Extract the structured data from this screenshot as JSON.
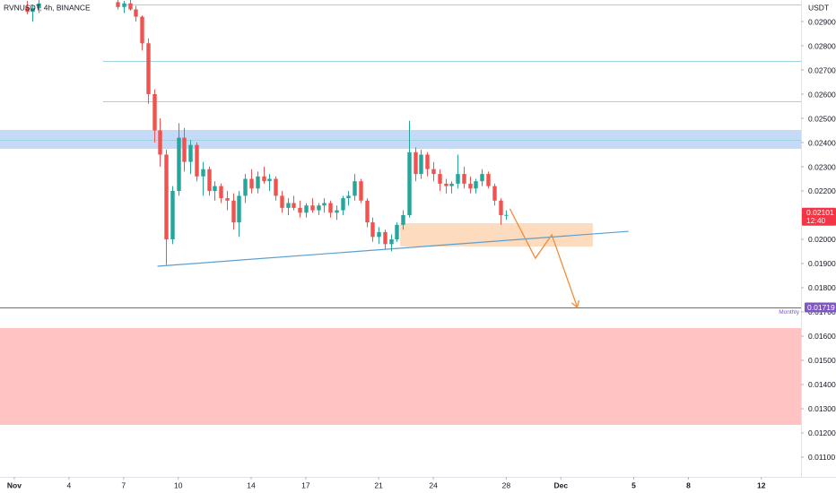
{
  "chart_data": {
    "type": "candlestick",
    "title": "RVNUSDT, 4h, BINANCE",
    "y_unit": "USDT",
    "up_color": "#26a69a",
    "down_color": "#ef5350",
    "grid": false,
    "xlim": [
      0.216,
      44.18
    ],
    "ylim": [
      0.010185,
      0.029889
    ],
    "xticks": [
      {
        "value": 1,
        "label": "Nov"
      },
      4,
      7,
      10,
      14,
      17,
      21,
      24,
      28,
      {
        "value": 31,
        "label": "Dec"
      },
      {
        "value": 35,
        "label": "5"
      },
      {
        "value": 38,
        "label": "8"
      },
      {
        "value": 42,
        "label": "12"
      }
    ],
    "yticks": [
      {
        "value": 0.011,
        "label": "0.01100"
      },
      {
        "value": 0.012,
        "label": "0.01200"
      },
      {
        "value": 0.013,
        "label": "0.01300"
      },
      {
        "value": 0.014,
        "label": "0.01400"
      },
      {
        "value": 0.015,
        "label": "0.01500"
      },
      {
        "value": 0.016,
        "label": "0.01600"
      },
      {
        "value": 0.017,
        "label": "0.01700"
      },
      {
        "value": 0.018,
        "label": "0.01800"
      },
      {
        "value": 0.019,
        "label": "0.01900"
      },
      {
        "value": 0.02,
        "label": "0.02000"
      },
      {
        "value": 0.021,
        "label": "0.02100"
      },
      {
        "value": 0.022,
        "label": "0.02200"
      },
      {
        "value": 0.023,
        "label": "0.02300"
      },
      {
        "value": 0.024,
        "label": "0.02400"
      },
      {
        "value": 0.025,
        "label": "0.02500"
      },
      {
        "value": 0.026,
        "label": "0.02600"
      },
      {
        "value": 0.027,
        "label": "0.02700"
      },
      {
        "value": 0.028,
        "label": "0.02800"
      },
      {
        "value": 0.029,
        "label": "0.02900"
      }
    ],
    "x": [
      1.67,
      2,
      2.33,
      6.67,
      7,
      7.33,
      7.67,
      8,
      8.33,
      8.67,
      9,
      9.33,
      9.67,
      10,
      10.33,
      10.67,
      11,
      11.33,
      11.67,
      12,
      12.33,
      12.67,
      13,
      13.33,
      13.67,
      14,
      14.33,
      14.67,
      15,
      15.33,
      15.67,
      16,
      16.33,
      16.67,
      17,
      17.33,
      17.67,
      18,
      18.33,
      18.67,
      19,
      19.33,
      19.67,
      20,
      20.33,
      20.67,
      21,
      21.33,
      21.67,
      22,
      22.33,
      22.67,
      23,
      23.33,
      23.67,
      24,
      24.33,
      24.67,
      25,
      25.33,
      25.67,
      26,
      26.33,
      26.67,
      27,
      27.33,
      27.67,
      28
    ],
    "open": [
      0.0296,
      0.0294,
      0.02955,
      0.0298,
      0.0296,
      0.02975,
      0.0295,
      0.0292,
      0.0281,
      0.026,
      0.0245,
      0.0235,
      0.02,
      0.022,
      0.0242,
      0.0232,
      0.0239,
      0.0226,
      0.0229,
      0.022,
      0.0222,
      0.0217,
      0.0216,
      0.0207,
      0.0218,
      0.0225,
      0.0221,
      0.0226,
      0.0224,
      0.0225,
      0.0218,
      0.0213,
      0.0215,
      0.0213,
      0.0211,
      0.0214,
      0.0212,
      0.0214,
      0.0215,
      0.0211,
      0.0212,
      0.0217,
      0.0218,
      0.0224,
      0.0216,
      0.0207,
      0.0201,
      0.0203,
      0.0198,
      0.02,
      0.0206,
      0.021,
      0.0236,
      0.0227,
      0.0235,
      0.0229,
      0.0227,
      0.0223,
      0.0222,
      0.0223,
      0.0227,
      0.0223,
      0.0221,
      0.0224,
      0.0227,
      0.0222,
      0.0216,
      0.021
    ],
    "high": [
      0.02985,
      0.0297,
      0.0299,
      0.02995,
      0.02985,
      0.02995,
      0.02965,
      0.02925,
      0.0283,
      0.0262,
      0.025,
      0.0237,
      0.0222,
      0.0248,
      0.0246,
      0.0241,
      0.024,
      0.0232,
      0.023,
      0.0224,
      0.0223,
      0.022,
      0.0219,
      0.022,
      0.0227,
      0.0229,
      0.0228,
      0.023,
      0.0227,
      0.0226,
      0.022,
      0.0217,
      0.0218,
      0.0216,
      0.0215,
      0.0217,
      0.0215,
      0.0217,
      0.0216,
      0.0214,
      0.0218,
      0.022,
      0.0227,
      0.0225,
      0.0217,
      0.0209,
      0.0205,
      0.0204,
      0.0202,
      0.0207,
      0.0212,
      0.0249,
      0.0238,
      0.0237,
      0.0236,
      0.0232,
      0.0229,
      0.0225,
      0.0224,
      0.0235,
      0.023,
      0.0226,
      0.0225,
      0.0229,
      0.0228,
      0.0223,
      0.0217,
      0.0212
    ],
    "low": [
      0.0293,
      0.029,
      0.02935,
      0.0295,
      0.02935,
      0.02945,
      0.029,
      0.0278,
      0.0256,
      0.024,
      0.023,
      0.01895,
      0.0198,
      0.0218,
      0.0228,
      0.0227,
      0.0224,
      0.0218,
      0.0218,
      0.0216,
      0.0215,
      0.0212,
      0.0204,
      0.0201,
      0.0215,
      0.0219,
      0.0219,
      0.0223,
      0.022,
      0.0216,
      0.0211,
      0.021,
      0.0212,
      0.0209,
      0.0209,
      0.0211,
      0.021,
      0.0211,
      0.0209,
      0.0208,
      0.021,
      0.0214,
      0.0216,
      0.0215,
      0.0205,
      0.0199,
      0.0198,
      0.0196,
      0.0195,
      0.0199,
      0.0204,
      0.0209,
      0.0224,
      0.0225,
      0.0226,
      0.0224,
      0.022,
      0.0219,
      0.0219,
      0.0221,
      0.0221,
      0.0219,
      0.0219,
      0.0222,
      0.0221,
      0.0214,
      0.0206,
      0.0208
    ],
    "close": [
      0.0294,
      0.02955,
      0.02975,
      0.0296,
      0.02975,
      0.0295,
      0.0292,
      0.0281,
      0.026,
      0.0245,
      0.0235,
      0.02,
      0.022,
      0.0242,
      0.0232,
      0.0239,
      0.0226,
      0.0229,
      0.022,
      0.0222,
      0.0217,
      0.0216,
      0.0207,
      0.0218,
      0.0225,
      0.0221,
      0.0226,
      0.0224,
      0.0225,
      0.0218,
      0.0213,
      0.0215,
      0.0213,
      0.0211,
      0.0214,
      0.0212,
      0.0214,
      0.0215,
      0.0211,
      0.0212,
      0.0217,
      0.0218,
      0.0224,
      0.0216,
      0.0207,
      0.0201,
      0.0203,
      0.0198,
      0.02,
      0.0206,
      0.021,
      0.0236,
      0.0227,
      0.0235,
      0.0229,
      0.0227,
      0.0223,
      0.0222,
      0.0223,
      0.0227,
      0.0223,
      0.0221,
      0.0224,
      0.0227,
      0.0222,
      0.0216,
      0.021,
      0.02101
    ],
    "last_price": {
      "value": 0.02101,
      "label": "0.02101",
      "countdown": "12:40",
      "color": "#f23645"
    },
    "monthly_level": {
      "value": 0.01719,
      "label": "0.01719",
      "name": "Monthly",
      "color": "#7e57c2"
    },
    "levels": [
      {
        "value": 0.0297,
        "from": 7.1,
        "color": "#9fd3de"
      },
      {
        "value": 0.02737,
        "from": 5.87,
        "color": "#9fd3de"
      },
      {
        "value": 0.0257,
        "from": 5.87,
        "color": "#9fd3de"
      },
      {
        "value": 0.02411,
        "color": "#9fd3de"
      }
    ],
    "zones": [
      {
        "ylim": [
          0.023741,
          0.024519
        ],
        "color": "#bbd3f7"
      },
      {
        "ylim": [
          0.012333,
          0.016333
        ],
        "color": "#ffb8b8"
      },
      {
        "ylim": [
          0.019704,
          0.020667
        ],
        "xlim": [
          22.18,
          32.75
        ],
        "color": "#fcd5b4"
      }
    ],
    "trendline": {
      "x": [
        8.86,
        34.71
      ],
      "y": [
        0.01889,
        0.02033
      ],
      "color": "#5b9fcf"
    },
    "projection": {
      "x": [
        28.2,
        29.6,
        30.5,
        31.9
      ],
      "y": [
        0.02126,
        0.01922,
        0.02019,
        0.01719
      ],
      "color": "#f28c38"
    }
  }
}
